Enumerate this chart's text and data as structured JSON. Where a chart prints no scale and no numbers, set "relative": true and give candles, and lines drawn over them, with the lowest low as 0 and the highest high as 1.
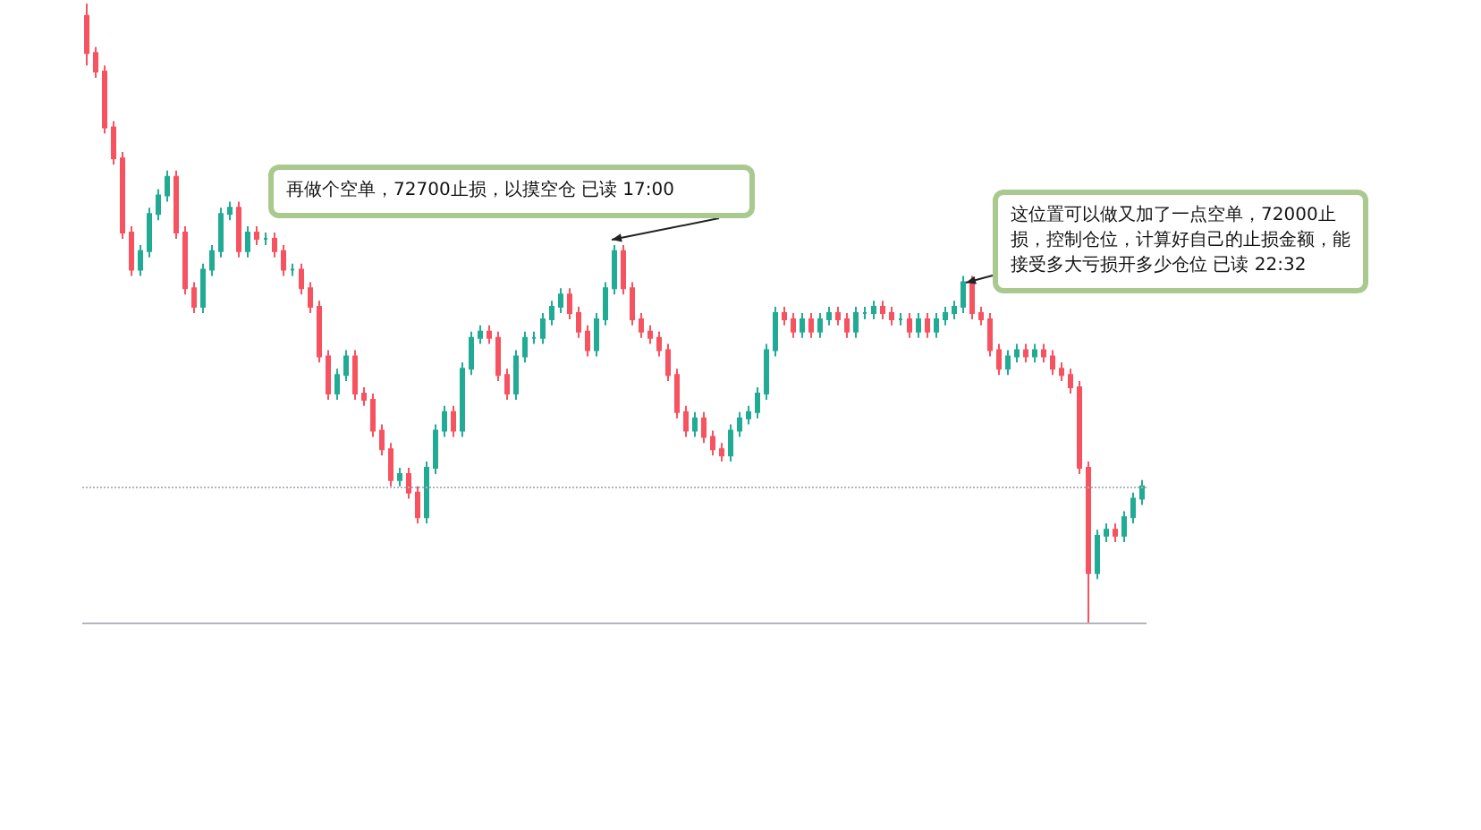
{
  "chart_data": {
    "type": "candlestick",
    "relative": true,
    "categories": [
      null,
      null,
      null,
      null,
      null,
      null,
      null,
      null,
      null,
      null,
      null,
      null,
      null,
      null,
      null,
      null,
      null,
      null,
      null,
      null,
      null,
      null,
      null,
      null,
      null,
      null,
      null,
      null,
      null,
      null,
      null,
      null,
      null,
      null,
      null,
      null,
      null,
      null,
      null,
      null,
      null,
      null,
      null,
      null,
      null,
      null,
      null,
      null,
      null,
      null,
      null,
      null,
      null,
      null,
      null,
      null,
      null,
      null,
      null,
      null,
      null,
      null,
      null,
      null,
      null,
      null,
      null,
      null,
      null,
      null,
      null,
      null,
      null,
      null,
      null,
      null,
      null,
      null,
      null,
      null,
      null,
      null,
      null,
      null,
      null,
      null,
      null,
      null,
      null,
      null,
      null,
      null,
      null,
      null,
      null,
      null,
      null,
      null,
      null,
      null,
      null,
      null,
      null,
      null,
      null,
      null,
      null,
      null,
      null,
      null,
      null,
      null,
      null,
      null,
      null,
      null,
      null,
      null,
      null
    ],
    "ohlc": [
      [
        0.98,
        1,
        0.9,
        0.92
      ],
      [
        0.92,
        0.93,
        0.88,
        0.89
      ],
      [
        0.89,
        0.9,
        0.79,
        0.8
      ],
      [
        0.8,
        0.81,
        0.74,
        0.75
      ],
      [
        0.75,
        0.76,
        0.62,
        0.63
      ],
      [
        0.63,
        0.64,
        0.56,
        0.57
      ],
      [
        0.57,
        0.61,
        0.56,
        0.6
      ],
      [
        0.6,
        0.67,
        0.59,
        0.66
      ],
      [
        0.66,
        0.7,
        0.65,
        0.69
      ],
      [
        0.69,
        0.73,
        0.68,
        0.72
      ],
      [
        0.72,
        0.73,
        0.62,
        0.63
      ],
      [
        0.63,
        0.64,
        0.53,
        0.54
      ],
      [
        0.54,
        0.55,
        0.5,
        0.51
      ],
      [
        0.51,
        0.58,
        0.5,
        0.57
      ],
      [
        0.57,
        0.61,
        0.56,
        0.6
      ],
      [
        0.6,
        0.67,
        0.59,
        0.66
      ],
      [
        0.66,
        0.68,
        0.65,
        0.67
      ],
      [
        0.67,
        0.68,
        0.59,
        0.6
      ],
      [
        0.6,
        0.64,
        0.59,
        0.63
      ],
      [
        0.63,
        0.64,
        0.61,
        0.62
      ],
      [
        0.62,
        0.63,
        0.61,
        0.62
      ],
      [
        0.62,
        0.63,
        0.59,
        0.6
      ],
      [
        0.6,
        0.61,
        0.56,
        0.57
      ],
      [
        0.57,
        0.58,
        0.56,
        0.57
      ],
      [
        0.57,
        0.58,
        0.53,
        0.54
      ],
      [
        0.54,
        0.55,
        0.5,
        0.51
      ],
      [
        0.51,
        0.52,
        0.42,
        0.43
      ],
      [
        0.43,
        0.44,
        0.36,
        0.37
      ],
      [
        0.37,
        0.41,
        0.36,
        0.4
      ],
      [
        0.4,
        0.44,
        0.39,
        0.43
      ],
      [
        0.43,
        0.44,
        0.36,
        0.37
      ],
      [
        0.37,
        0.38,
        0.35,
        0.36
      ],
      [
        0.36,
        0.37,
        0.3,
        0.31
      ],
      [
        0.31,
        0.32,
        0.27,
        0.28
      ],
      [
        0.28,
        0.29,
        0.22,
        0.23
      ],
      [
        0.23,
        0.25,
        0.22,
        0.24
      ],
      [
        0.24,
        0.25,
        0.2,
        0.21
      ],
      [
        0.21,
        0.22,
        0.16,
        0.17
      ],
      [
        0.17,
        0.26,
        0.16,
        0.25
      ],
      [
        0.25,
        0.32,
        0.24,
        0.31
      ],
      [
        0.31,
        0.35,
        0.3,
        0.34
      ],
      [
        0.34,
        0.35,
        0.3,
        0.31
      ],
      [
        0.31,
        0.42,
        0.3,
        0.41
      ],
      [
        0.41,
        0.47,
        0.4,
        0.46
      ],
      [
        0.46,
        0.48,
        0.45,
        0.47
      ],
      [
        0.47,
        0.48,
        0.45,
        0.46
      ],
      [
        0.46,
        0.47,
        0.39,
        0.4
      ],
      [
        0.4,
        0.41,
        0.36,
        0.37
      ],
      [
        0.37,
        0.44,
        0.36,
        0.43
      ],
      [
        0.43,
        0.47,
        0.42,
        0.46
      ],
      [
        0.46,
        0.47,
        0.45,
        0.46
      ],
      [
        0.46,
        0.5,
        0.45,
        0.49
      ],
      [
        0.49,
        0.52,
        0.48,
        0.51
      ],
      [
        0.51,
        0.54,
        0.5,
        0.53
      ],
      [
        0.53,
        0.54,
        0.49,
        0.5
      ],
      [
        0.5,
        0.51,
        0.46,
        0.47
      ],
      [
        0.47,
        0.48,
        0.43,
        0.44
      ],
      [
        0.44,
        0.5,
        0.43,
        0.49
      ],
      [
        0.49,
        0.55,
        0.48,
        0.54
      ],
      [
        0.54,
        0.61,
        0.53,
        0.6
      ],
      [
        0.6,
        0.61,
        0.53,
        0.54
      ],
      [
        0.54,
        0.55,
        0.48,
        0.49
      ],
      [
        0.49,
        0.5,
        0.46,
        0.47
      ],
      [
        0.47,
        0.48,
        0.45,
        0.46
      ],
      [
        0.46,
        0.47,
        0.43,
        0.44
      ],
      [
        0.44,
        0.45,
        0.39,
        0.4
      ],
      [
        0.4,
        0.41,
        0.33,
        0.34
      ],
      [
        0.34,
        0.35,
        0.3,
        0.31
      ],
      [
        0.31,
        0.34,
        0.3,
        0.33
      ],
      [
        0.33,
        0.34,
        0.29,
        0.3
      ],
      [
        0.3,
        0.31,
        0.27,
        0.28
      ],
      [
        0.28,
        0.29,
        0.26,
        0.27
      ],
      [
        0.27,
        0.32,
        0.26,
        0.31
      ],
      [
        0.31,
        0.34,
        0.3,
        0.33
      ],
      [
        0.33,
        0.35,
        0.32,
        0.34
      ],
      [
        0.34,
        0.38,
        0.33,
        0.37
      ],
      [
        0.37,
        0.45,
        0.36,
        0.44
      ],
      [
        0.44,
        0.51,
        0.43,
        0.5
      ],
      [
        0.5,
        0.51,
        0.48,
        0.49
      ],
      [
        0.49,
        0.5,
        0.46,
        0.47
      ],
      [
        0.47,
        0.5,
        0.46,
        0.49
      ],
      [
        0.49,
        0.5,
        0.46,
        0.47
      ],
      [
        0.47,
        0.5,
        0.46,
        0.49
      ],
      [
        0.49,
        0.51,
        0.48,
        0.5
      ],
      [
        0.5,
        0.51,
        0.48,
        0.49
      ],
      [
        0.49,
        0.5,
        0.46,
        0.47
      ],
      [
        0.47,
        0.51,
        0.46,
        0.5
      ],
      [
        0.5,
        0.51,
        0.49,
        0.5
      ],
      [
        0.5,
        0.52,
        0.49,
        0.51
      ],
      [
        0.51,
        0.52,
        0.49,
        0.5
      ],
      [
        0.5,
        0.51,
        0.48,
        0.49
      ],
      [
        0.49,
        0.5,
        0.48,
        0.49
      ],
      [
        0.49,
        0.5,
        0.46,
        0.47
      ],
      [
        0.47,
        0.5,
        0.46,
        0.49
      ],
      [
        0.49,
        0.5,
        0.46,
        0.47
      ],
      [
        0.47,
        0.5,
        0.46,
        0.49
      ],
      [
        0.49,
        0.51,
        0.48,
        0.5
      ],
      [
        0.5,
        0.52,
        0.49,
        0.51
      ],
      [
        0.51,
        0.56,
        0.5,
        0.55
      ],
      [
        0.55,
        0.56,
        0.49,
        0.5
      ],
      [
        0.5,
        0.51,
        0.48,
        0.49
      ],
      [
        0.49,
        0.5,
        0.43,
        0.44
      ],
      [
        0.44,
        0.45,
        0.4,
        0.41
      ],
      [
        0.41,
        0.44,
        0.4,
        0.43
      ],
      [
        0.43,
        0.45,
        0.42,
        0.44
      ],
      [
        0.44,
        0.45,
        0.42,
        0.43
      ],
      [
        0.43,
        0.45,
        0.42,
        0.44
      ],
      [
        0.44,
        0.45,
        0.42,
        0.43
      ],
      [
        0.43,
        0.44,
        0.4,
        0.41
      ],
      [
        0.41,
        0.42,
        0.39,
        0.4
      ],
      [
        0.4,
        0.41,
        0.37,
        0.38
      ],
      [
        0.38,
        0.39,
        0.24,
        0.25
      ],
      [
        0.25,
        0.26,
        0,
        0.08
      ],
      [
        0.08,
        0.15,
        0.07,
        0.14
      ],
      [
        0.14,
        0.16,
        0.13,
        0.15
      ],
      [
        0.15,
        0.16,
        0.13,
        0.14
      ],
      [
        0.14,
        0.18,
        0.13,
        0.17
      ],
      [
        0.17,
        0.21,
        0.16,
        0.2
      ],
      [
        0.2,
        0.23,
        0.19,
        0.22
      ]
    ],
    "colors": [
      "#f7525f",
      "#f7525f",
      "#f7525f",
      "#f7525f",
      "#f7525f",
      "#f7525f",
      "#22ab94",
      "#22ab94",
      "#22ab94",
      "#22ab94",
      "#f7525f",
      "#f7525f",
      "#f7525f",
      "#22ab94",
      "#22ab94",
      "#22ab94",
      "#22ab94",
      "#f7525f",
      "#22ab94",
      "#f7525f",
      "#22ab94",
      "#f7525f",
      "#f7525f",
      "#22ab94",
      "#f7525f",
      "#f7525f",
      "#f7525f",
      "#f7525f",
      "#22ab94",
      "#22ab94",
      "#f7525f",
      "#f7525f",
      "#f7525f",
      "#f7525f",
      "#f7525f",
      "#22ab94",
      "#f7525f",
      "#f7525f",
      "#22ab94",
      "#22ab94",
      "#22ab94",
      "#f7525f",
      "#22ab94",
      "#22ab94",
      "#22ab94",
      "#f7525f",
      "#f7525f",
      "#f7525f",
      "#22ab94",
      "#22ab94",
      "#22ab94",
      "#22ab94",
      "#22ab94",
      "#22ab94",
      "#f7525f",
      "#f7525f",
      "#f7525f",
      "#22ab94",
      "#22ab94",
      "#22ab94",
      "#f7525f",
      "#f7525f",
      "#f7525f",
      "#f7525f",
      "#f7525f",
      "#f7525f",
      "#f7525f",
      "#f7525f",
      "#22ab94",
      "#f7525f",
      "#f7525f",
      "#f7525f",
      "#22ab94",
      "#22ab94",
      "#22ab94",
      "#22ab94",
      "#22ab94",
      "#22ab94",
      "#f7525f",
      "#f7525f",
      "#22ab94",
      "#f7525f",
      "#22ab94",
      "#22ab94",
      "#f7525f",
      "#f7525f",
      "#22ab94",
      "#22ab94",
      "#22ab94",
      "#f7525f",
      "#f7525f",
      "#22ab94",
      "#f7525f",
      "#22ab94",
      "#f7525f",
      "#22ab94",
      "#22ab94",
      "#22ab94",
      "#22ab94",
      "#f7525f",
      "#f7525f",
      "#f7525f",
      "#f7525f",
      "#22ab94",
      "#22ab94",
      "#f7525f",
      "#22ab94",
      "#f7525f",
      "#f7525f",
      "#f7525f",
      "#f7525f",
      "#f7525f",
      "#f7525f",
      "#22ab94",
      "#22ab94",
      "#f7525f",
      "#22ab94",
      "#22ab94",
      "#22ab94"
    ],
    "ref_lines": [
      {
        "axis": "y",
        "value": 0.22,
        "color": "#b2b5be",
        "line_style": "dotted"
      },
      {
        "axis": "y",
        "value": 0,
        "color": "#b2b5be",
        "line_style": "solid"
      }
    ],
    "annotations": [
      "再做个空单，72700止损，以摸空仓 已读 17:00",
      "这位置可以做又加了一点空单，72000止损，控制仓位，计算好自己的止损金额，能接受多大亏损开多少仓位 已读 22:32"
    ]
  }
}
